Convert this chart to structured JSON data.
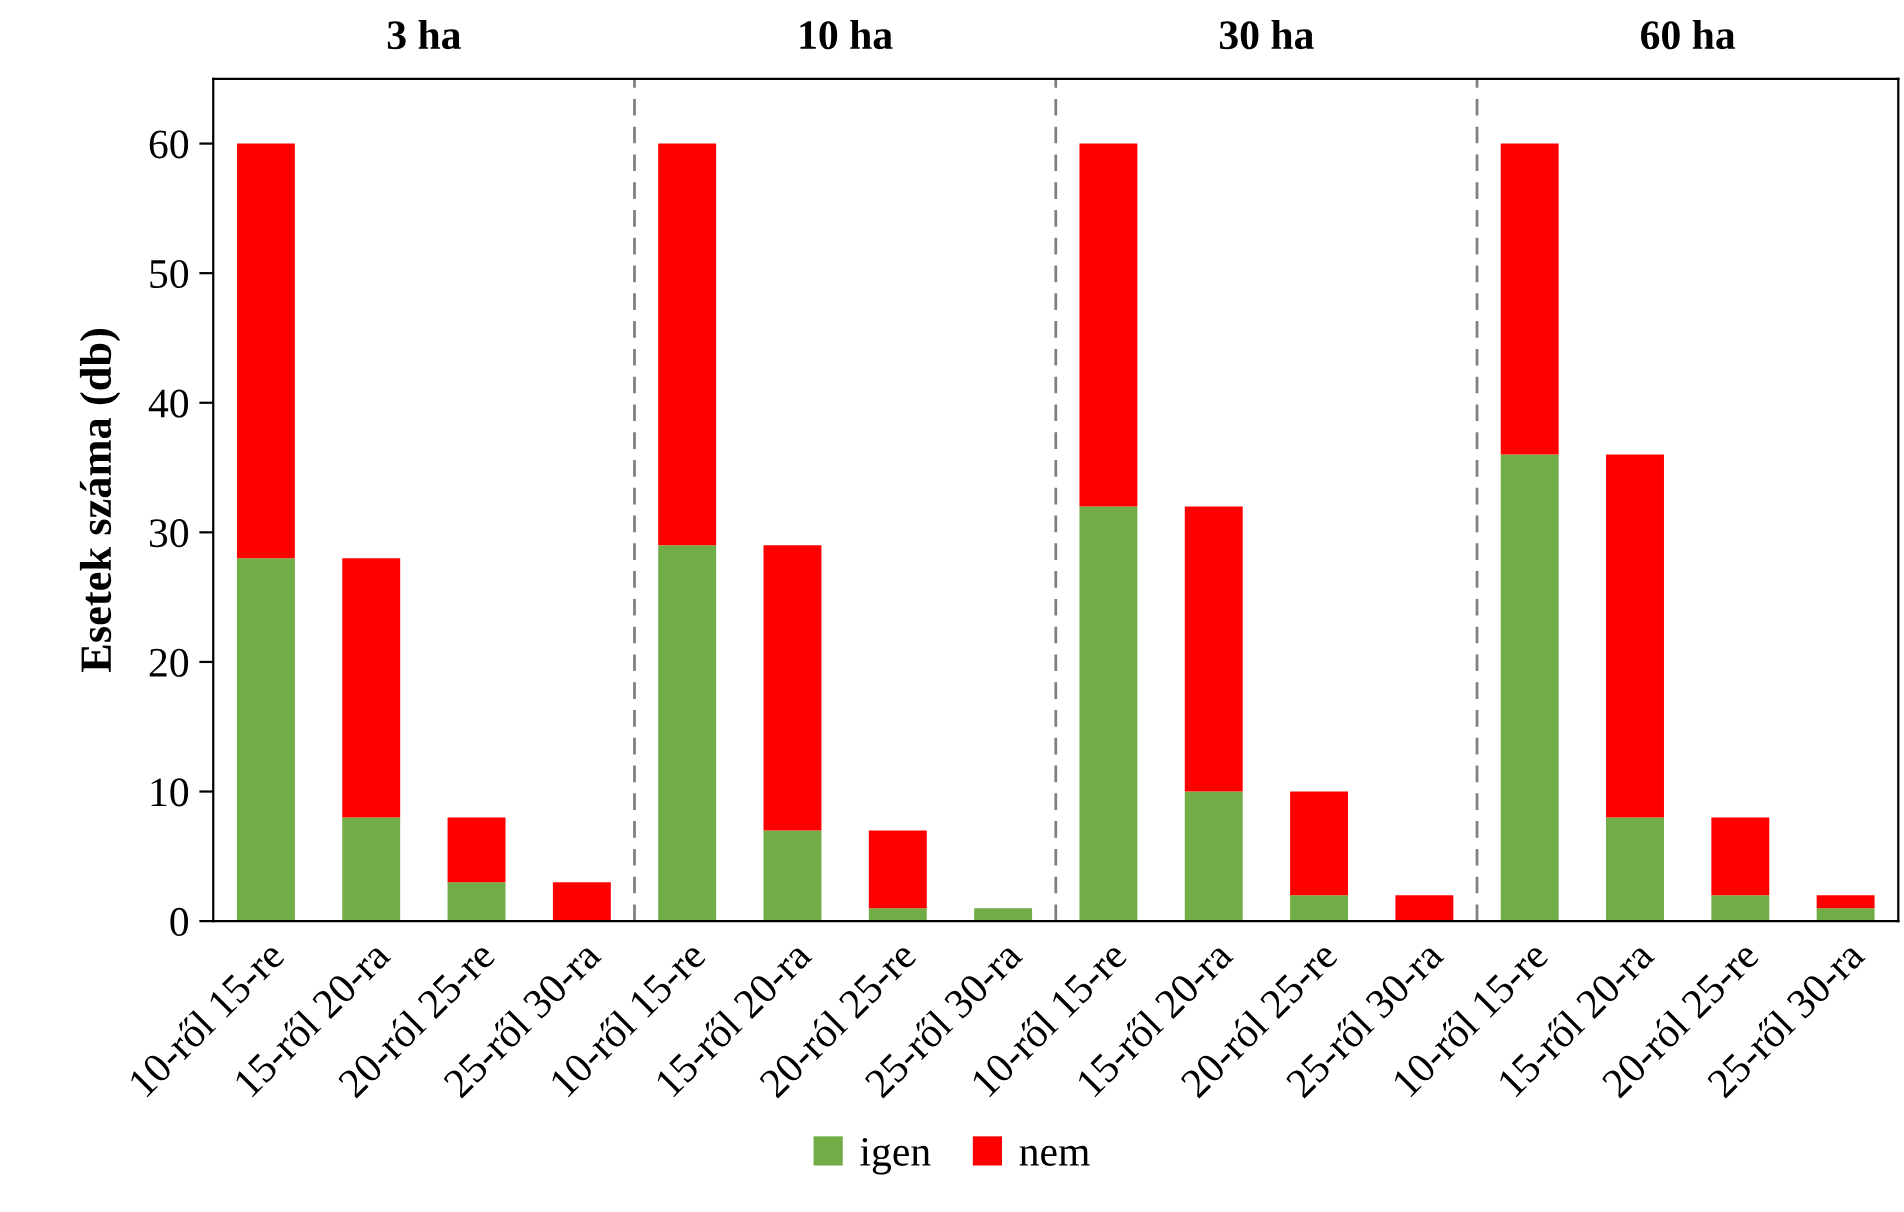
{
  "chart_data": {
    "type": "bar",
    "ylabel": "Esetek száma (db)",
    "categories": [
      "10-ről 15-re",
      "15-ről 20-ra",
      "20-ról 25-re",
      "25-ről 30-ra",
      "10-ről 15-re",
      "15-ről 20-ra",
      "20-ról 25-re",
      "25-ről 30-ra",
      "10-ről 15-re",
      "15-ről 20-ra",
      "20-ról 25-re",
      "25-ről 30-ra",
      "10-ről 15-re",
      "15-ről 20-ra",
      "20-ról 25-re",
      "25-ről 30-ra"
    ],
    "annotations": [
      "3 ha",
      "10 ha",
      "30 ha",
      "60 ha"
    ],
    "stacked": true,
    "ylim": [
      0,
      65
    ],
    "yticks": [
      0,
      10,
      20,
      30,
      40,
      50,
      60
    ],
    "legend": "bottom",
    "series": [
      {
        "name": "igen",
        "color": "#70ad47",
        "values": [
          28,
          8,
          3,
          0,
          29,
          7,
          1,
          1,
          32,
          10,
          2,
          0,
          36,
          8,
          2,
          1
        ]
      },
      {
        "name": "nem",
        "color": "#ff0000",
        "values": [
          32,
          20,
          5,
          3,
          31,
          22,
          6,
          0,
          28,
          22,
          8,
          2,
          24,
          28,
          6,
          1
        ]
      }
    ]
  }
}
